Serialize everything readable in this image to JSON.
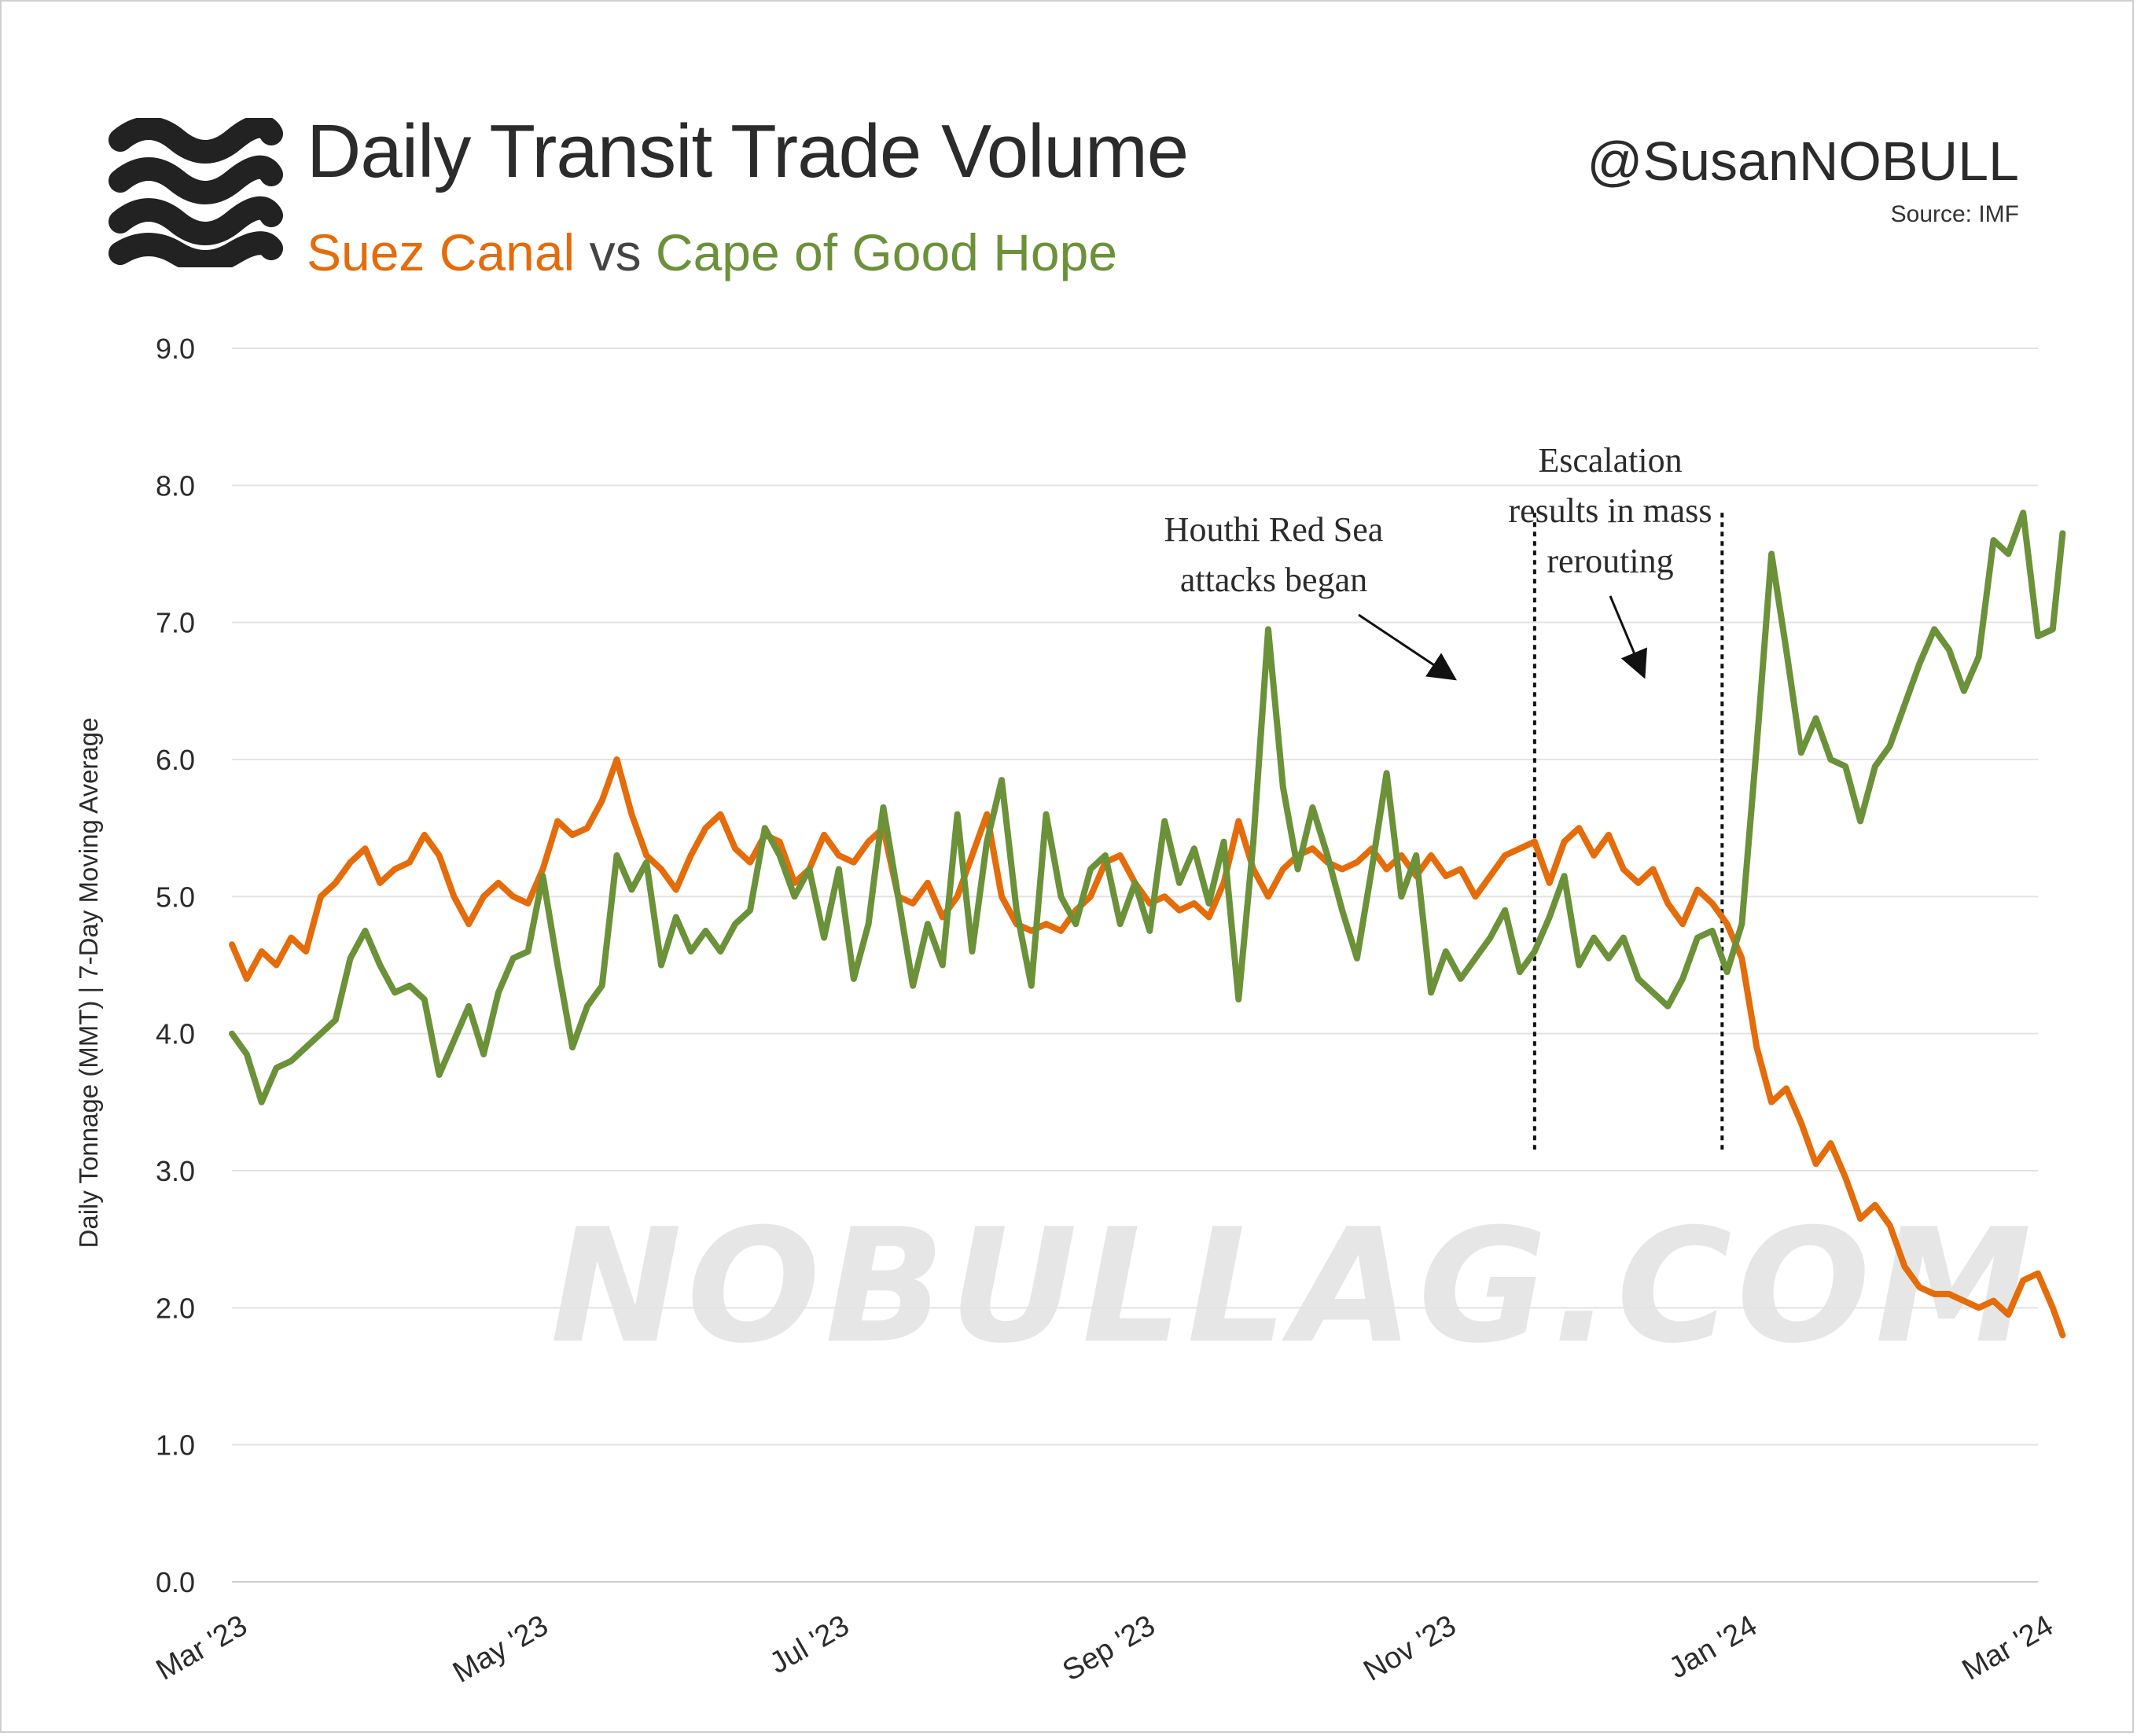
{
  "header": {
    "title": "Daily Transit Trade Volume",
    "subtitle_a": "Suez Canal",
    "subtitle_vs": "vs",
    "subtitle_b": "Cape of Good Hope",
    "handle": "@SusanNOBULL",
    "source": "Source: IMF",
    "logo_icon": "waves-icon"
  },
  "watermark": "NOBULLAG.COM",
  "colors": {
    "suez": "#e46c0a",
    "cape": "#6b9139",
    "grid": "#e3e3e3"
  },
  "chart_data": {
    "type": "line",
    "ylabel": "Daily Tonnage (MMT) | 7-Day Moving Average",
    "xlabel": "",
    "ylim": [
      0,
      9
    ],
    "yticks": [
      "0.0",
      "1.0",
      "2.0",
      "3.0",
      "4.0",
      "5.0",
      "6.0",
      "7.0",
      "8.0",
      "9.0"
    ],
    "xlim": [
      "2023-03-01",
      "2024-03-01"
    ],
    "xticks": [
      {
        "date": "2023-03-01",
        "label": "Mar '23"
      },
      {
        "date": "2023-05-01",
        "label": "May '23"
      },
      {
        "date": "2023-07-01",
        "label": "Jul '23"
      },
      {
        "date": "2023-09-01",
        "label": "Sep '23"
      },
      {
        "date": "2023-11-01",
        "label": "Nov '23"
      },
      {
        "date": "2024-01-01",
        "label": "Jan '24"
      },
      {
        "date": "2024-03-01",
        "label": "Mar '24"
      }
    ],
    "grid": true,
    "series": [
      {
        "name": "Suez Canal",
        "color": "#e46c0a",
        "points": [
          [
            "2023-03-01",
            4.65
          ],
          [
            "2023-03-04",
            4.4
          ],
          [
            "2023-03-07",
            4.6
          ],
          [
            "2023-03-10",
            4.5
          ],
          [
            "2023-03-13",
            4.7
          ],
          [
            "2023-03-16",
            4.6
          ],
          [
            "2023-03-19",
            5.0
          ],
          [
            "2023-03-22",
            5.1
          ],
          [
            "2023-03-25",
            5.25
          ],
          [
            "2023-03-28",
            5.35
          ],
          [
            "2023-03-31",
            5.1
          ],
          [
            "2023-04-03",
            5.2
          ],
          [
            "2023-04-06",
            5.25
          ],
          [
            "2023-04-09",
            5.45
          ],
          [
            "2023-04-12",
            5.3
          ],
          [
            "2023-04-15",
            5.0
          ],
          [
            "2023-04-18",
            4.8
          ],
          [
            "2023-04-21",
            5.0
          ],
          [
            "2023-04-24",
            5.1
          ],
          [
            "2023-04-27",
            5.0
          ],
          [
            "2023-04-30",
            4.95
          ],
          [
            "2023-05-03",
            5.2
          ],
          [
            "2023-05-06",
            5.55
          ],
          [
            "2023-05-09",
            5.45
          ],
          [
            "2023-05-12",
            5.5
          ],
          [
            "2023-05-15",
            5.7
          ],
          [
            "2023-05-18",
            6.0
          ],
          [
            "2023-05-21",
            5.6
          ],
          [
            "2023-05-24",
            5.3
          ],
          [
            "2023-05-27",
            5.2
          ],
          [
            "2023-05-30",
            5.05
          ],
          [
            "2023-06-02",
            5.3
          ],
          [
            "2023-06-05",
            5.5
          ],
          [
            "2023-06-08",
            5.6
          ],
          [
            "2023-06-11",
            5.35
          ],
          [
            "2023-06-14",
            5.25
          ],
          [
            "2023-06-17",
            5.45
          ],
          [
            "2023-06-20",
            5.4
          ],
          [
            "2023-06-23",
            5.1
          ],
          [
            "2023-06-26",
            5.2
          ],
          [
            "2023-06-29",
            5.45
          ],
          [
            "2023-07-02",
            5.3
          ],
          [
            "2023-07-05",
            5.25
          ],
          [
            "2023-07-08",
            5.4
          ],
          [
            "2023-07-11",
            5.5
          ],
          [
            "2023-07-14",
            5.0
          ],
          [
            "2023-07-17",
            4.95
          ],
          [
            "2023-07-20",
            5.1
          ],
          [
            "2023-07-23",
            4.85
          ],
          [
            "2023-07-26",
            5.0
          ],
          [
            "2023-07-29",
            5.3
          ],
          [
            "2023-08-01",
            5.6
          ],
          [
            "2023-08-04",
            5.0
          ],
          [
            "2023-08-07",
            4.8
          ],
          [
            "2023-08-10",
            4.75
          ],
          [
            "2023-08-13",
            4.8
          ],
          [
            "2023-08-16",
            4.75
          ],
          [
            "2023-08-19",
            4.9
          ],
          [
            "2023-08-22",
            5.0
          ],
          [
            "2023-08-25",
            5.25
          ],
          [
            "2023-08-28",
            5.3
          ],
          [
            "2023-08-31",
            5.1
          ],
          [
            "2023-09-03",
            4.95
          ],
          [
            "2023-09-06",
            5.0
          ],
          [
            "2023-09-09",
            4.9
          ],
          [
            "2023-09-12",
            4.95
          ],
          [
            "2023-09-15",
            4.85
          ],
          [
            "2023-09-18",
            5.1
          ],
          [
            "2023-09-21",
            5.55
          ],
          [
            "2023-09-24",
            5.2
          ],
          [
            "2023-09-27",
            5.0
          ],
          [
            "2023-09-30",
            5.2
          ],
          [
            "2023-10-03",
            5.3
          ],
          [
            "2023-10-06",
            5.35
          ],
          [
            "2023-10-09",
            5.25
          ],
          [
            "2023-10-12",
            5.2
          ],
          [
            "2023-10-15",
            5.25
          ],
          [
            "2023-10-18",
            5.35
          ],
          [
            "2023-10-21",
            5.2
          ],
          [
            "2023-10-24",
            5.3
          ],
          [
            "2023-10-27",
            5.15
          ],
          [
            "2023-10-30",
            5.3
          ],
          [
            "2023-11-02",
            5.15
          ],
          [
            "2023-11-05",
            5.2
          ],
          [
            "2023-11-08",
            5.0
          ],
          [
            "2023-11-11",
            5.15
          ],
          [
            "2023-11-14",
            5.3
          ],
          [
            "2023-11-17",
            5.35
          ],
          [
            "2023-11-20",
            5.4
          ],
          [
            "2023-11-23",
            5.1
          ],
          [
            "2023-11-26",
            5.4
          ],
          [
            "2023-11-29",
            5.5
          ],
          [
            "2023-12-02",
            5.3
          ],
          [
            "2023-12-05",
            5.45
          ],
          [
            "2023-12-08",
            5.2
          ],
          [
            "2023-12-11",
            5.1
          ],
          [
            "2023-12-14",
            5.2
          ],
          [
            "2023-12-17",
            4.95
          ],
          [
            "2023-12-20",
            4.8
          ],
          [
            "2023-12-23",
            5.05
          ],
          [
            "2023-12-26",
            4.95
          ],
          [
            "2023-12-29",
            4.8
          ],
          [
            "2024-01-01",
            4.55
          ],
          [
            "2024-01-04",
            3.9
          ],
          [
            "2024-01-07",
            3.5
          ],
          [
            "2024-01-10",
            3.6
          ],
          [
            "2024-01-13",
            3.35
          ],
          [
            "2024-01-16",
            3.05
          ],
          [
            "2024-01-19",
            3.2
          ],
          [
            "2024-01-22",
            2.95
          ],
          [
            "2024-01-25",
            2.65
          ],
          [
            "2024-01-28",
            2.75
          ],
          [
            "2024-01-31",
            2.6
          ],
          [
            "2024-02-03",
            2.3
          ],
          [
            "2024-02-06",
            2.15
          ],
          [
            "2024-02-09",
            2.1
          ],
          [
            "2024-02-12",
            2.1
          ],
          [
            "2024-02-15",
            2.05
          ],
          [
            "2024-02-18",
            2.0
          ],
          [
            "2024-02-21",
            2.05
          ],
          [
            "2024-02-24",
            1.95
          ],
          [
            "2024-02-27",
            2.2
          ],
          [
            "2024-03-01",
            2.25
          ],
          [
            "2024-03-04",
            2.0
          ],
          [
            "2024-03-06",
            1.8
          ]
        ]
      },
      {
        "name": "Cape of Good Hope",
        "color": "#6b9139",
        "points": [
          [
            "2023-03-01",
            4.0
          ],
          [
            "2023-03-04",
            3.85
          ],
          [
            "2023-03-07",
            3.5
          ],
          [
            "2023-03-10",
            3.75
          ],
          [
            "2023-03-13",
            3.8
          ],
          [
            "2023-03-16",
            3.9
          ],
          [
            "2023-03-19",
            4.0
          ],
          [
            "2023-03-22",
            4.1
          ],
          [
            "2023-03-25",
            4.55
          ],
          [
            "2023-03-28",
            4.75
          ],
          [
            "2023-03-31",
            4.5
          ],
          [
            "2023-04-03",
            4.3
          ],
          [
            "2023-04-06",
            4.35
          ],
          [
            "2023-04-09",
            4.25
          ],
          [
            "2023-04-12",
            3.7
          ],
          [
            "2023-04-15",
            3.95
          ],
          [
            "2023-04-18",
            4.2
          ],
          [
            "2023-04-21",
            3.85
          ],
          [
            "2023-04-24",
            4.3
          ],
          [
            "2023-04-27",
            4.55
          ],
          [
            "2023-04-30",
            4.6
          ],
          [
            "2023-05-03",
            5.15
          ],
          [
            "2023-05-06",
            4.5
          ],
          [
            "2023-05-09",
            3.9
          ],
          [
            "2023-05-12",
            4.2
          ],
          [
            "2023-05-15",
            4.35
          ],
          [
            "2023-05-18",
            5.3
          ],
          [
            "2023-05-21",
            5.05
          ],
          [
            "2023-05-24",
            5.25
          ],
          [
            "2023-05-27",
            4.5
          ],
          [
            "2023-05-30",
            4.85
          ],
          [
            "2023-06-02",
            4.6
          ],
          [
            "2023-06-05",
            4.75
          ],
          [
            "2023-06-08",
            4.6
          ],
          [
            "2023-06-11",
            4.8
          ],
          [
            "2023-06-14",
            4.9
          ],
          [
            "2023-06-17",
            5.5
          ],
          [
            "2023-06-20",
            5.3
          ],
          [
            "2023-06-23",
            5.0
          ],
          [
            "2023-06-26",
            5.2
          ],
          [
            "2023-06-29",
            4.7
          ],
          [
            "2023-07-02",
            5.2
          ],
          [
            "2023-07-05",
            4.4
          ],
          [
            "2023-07-08",
            4.8
          ],
          [
            "2023-07-11",
            5.65
          ],
          [
            "2023-07-14",
            5.0
          ],
          [
            "2023-07-17",
            4.35
          ],
          [
            "2023-07-20",
            4.8
          ],
          [
            "2023-07-23",
            4.5
          ],
          [
            "2023-07-26",
            5.6
          ],
          [
            "2023-07-29",
            4.6
          ],
          [
            "2023-08-01",
            5.4
          ],
          [
            "2023-08-04",
            5.85
          ],
          [
            "2023-08-07",
            4.9
          ],
          [
            "2023-08-10",
            4.35
          ],
          [
            "2023-08-13",
            5.6
          ],
          [
            "2023-08-16",
            5.0
          ],
          [
            "2023-08-19",
            4.8
          ],
          [
            "2023-08-22",
            5.2
          ],
          [
            "2023-08-25",
            5.3
          ],
          [
            "2023-08-28",
            4.8
          ],
          [
            "2023-08-31",
            5.1
          ],
          [
            "2023-09-03",
            4.75
          ],
          [
            "2023-09-06",
            5.55
          ],
          [
            "2023-09-09",
            5.1
          ],
          [
            "2023-09-12",
            5.35
          ],
          [
            "2023-09-15",
            4.95
          ],
          [
            "2023-09-18",
            5.4
          ],
          [
            "2023-09-21",
            4.25
          ],
          [
            "2023-09-24",
            5.4
          ],
          [
            "2023-09-27",
            6.95
          ],
          [
            "2023-09-30",
            5.8
          ],
          [
            "2023-10-03",
            5.2
          ],
          [
            "2023-10-06",
            5.65
          ],
          [
            "2023-10-09",
            5.3
          ],
          [
            "2023-10-12",
            4.9
          ],
          [
            "2023-10-15",
            4.55
          ],
          [
            "2023-10-18",
            5.2
          ],
          [
            "2023-10-21",
            5.9
          ],
          [
            "2023-10-24",
            5.0
          ],
          [
            "2023-10-27",
            5.3
          ],
          [
            "2023-10-30",
            4.3
          ],
          [
            "2023-11-02",
            4.6
          ],
          [
            "2023-11-05",
            4.4
          ],
          [
            "2023-11-08",
            4.55
          ],
          [
            "2023-11-11",
            4.7
          ],
          [
            "2023-11-14",
            4.9
          ],
          [
            "2023-11-17",
            4.45
          ],
          [
            "2023-11-20",
            4.6
          ],
          [
            "2023-11-23",
            4.85
          ],
          [
            "2023-11-26",
            5.15
          ],
          [
            "2023-11-29",
            4.5
          ],
          [
            "2023-12-02",
            4.7
          ],
          [
            "2023-12-05",
            4.55
          ],
          [
            "2023-12-08",
            4.7
          ],
          [
            "2023-12-11",
            4.4
          ],
          [
            "2023-12-14",
            4.3
          ],
          [
            "2023-12-17",
            4.2
          ],
          [
            "2023-12-20",
            4.4
          ],
          [
            "2023-12-23",
            4.7
          ],
          [
            "2023-12-26",
            4.75
          ],
          [
            "2023-12-29",
            4.45
          ],
          [
            "2024-01-01",
            4.8
          ],
          [
            "2024-01-04",
            6.1
          ],
          [
            "2024-01-07",
            7.5
          ],
          [
            "2024-01-10",
            6.8
          ],
          [
            "2024-01-13",
            6.05
          ],
          [
            "2024-01-16",
            6.3
          ],
          [
            "2024-01-19",
            6.0
          ],
          [
            "2024-01-22",
            5.95
          ],
          [
            "2024-01-25",
            5.55
          ],
          [
            "2024-01-28",
            5.95
          ],
          [
            "2024-01-31",
            6.1
          ],
          [
            "2024-02-03",
            6.4
          ],
          [
            "2024-02-06",
            6.7
          ],
          [
            "2024-02-09",
            6.95
          ],
          [
            "2024-02-12",
            6.8
          ],
          [
            "2024-02-15",
            6.5
          ],
          [
            "2024-02-18",
            6.75
          ],
          [
            "2024-02-21",
            7.6
          ],
          [
            "2024-02-24",
            7.5
          ],
          [
            "2024-02-27",
            7.8
          ],
          [
            "2024-03-01",
            6.9
          ],
          [
            "2024-03-04",
            6.95
          ],
          [
            "2024-03-06",
            7.65
          ]
        ]
      }
    ],
    "annotations": [
      {
        "lines": [
          "Houthi Red Sea",
          "attacks began"
        ],
        "date": "2023-11-20",
        "yrange": [
          3.15,
          7.8
        ]
      },
      {
        "lines": [
          "Escalation",
          "results in mass",
          "rerouting"
        ],
        "date": "2023-12-28",
        "yrange": [
          3.15,
          7.8
        ]
      }
    ]
  }
}
